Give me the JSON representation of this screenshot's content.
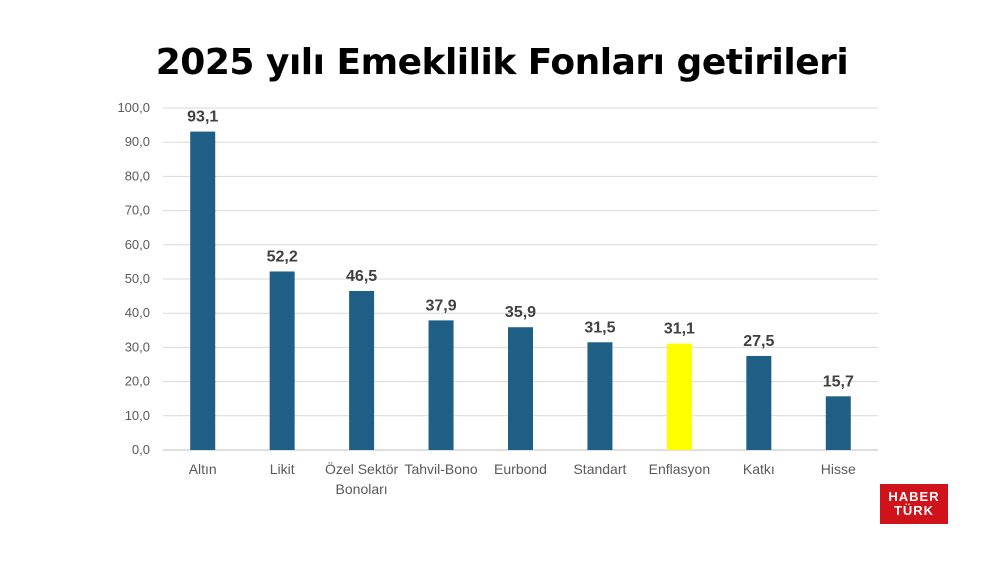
{
  "chart_data": {
    "type": "bar",
    "title": "2025 yılı Emeklilik Fonları getirileri",
    "xlabel": "",
    "ylabel": "",
    "ylim": [
      0,
      100
    ],
    "yticks": [
      "0,0",
      "10,0",
      "20,0",
      "30,0",
      "40,0",
      "50,0",
      "60,0",
      "70,0",
      "80,0",
      "90,0",
      "100,0"
    ],
    "categories": [
      "Altın",
      "Likit",
      "Özel Sektör Bonoları",
      "Tahvil-Bono",
      "Eurbond",
      "Standart",
      "Enflasyon",
      "Katkı",
      "Hisse"
    ],
    "category_lines": [
      [
        "Altın"
      ],
      [
        "Likit"
      ],
      [
        "Özel Sektör",
        "Bonoları"
      ],
      [
        "Tahvil-Bono"
      ],
      [
        "Eurbond"
      ],
      [
        "Standart"
      ],
      [
        "Enflasyon"
      ],
      [
        "Katkı"
      ],
      [
        "Hisse"
      ]
    ],
    "values": [
      93.1,
      52.2,
      46.5,
      37.9,
      35.9,
      31.5,
      31.1,
      27.5,
      15.7
    ],
    "value_labels": [
      "93,1",
      "52,2",
      "46,5",
      "37,9",
      "35,9",
      "31,5",
      "31,1",
      "27,5",
      "15,7"
    ],
    "colors": [
      "#1f5f85",
      "#1f5f85",
      "#1f5f85",
      "#1f5f85",
      "#1f5f85",
      "#1f5f85",
      "#ffff00",
      "#1f5f85",
      "#1f5f85"
    ],
    "grid": true,
    "legend": "none"
  },
  "logo": {
    "line1": "HABER",
    "line2": "TÜRK"
  }
}
